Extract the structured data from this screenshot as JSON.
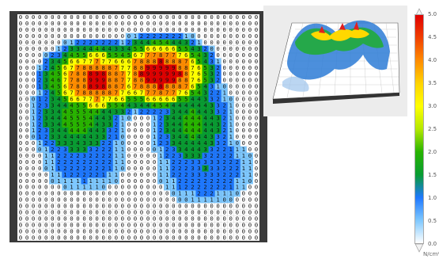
{
  "colorbar": {
    "ticks": [
      "5.0",
      "4.5",
      "4.0",
      "3.5",
      "3.0",
      "2.5",
      "2.0",
      "1.5",
      "1.0",
      "0.5",
      "0.0"
    ],
    "units_label": "N/cm²",
    "colors": [
      "#e00000",
      "#f04000",
      "#ff8c00",
      "#ffd400",
      "#ffff00",
      "#b4e800",
      "#28b400",
      "#089c32",
      "#1e78ff",
      "#7ec8ff",
      "#ffffff"
    ]
  },
  "heatmap": {
    "cell_value_default": "0"
  }
}
